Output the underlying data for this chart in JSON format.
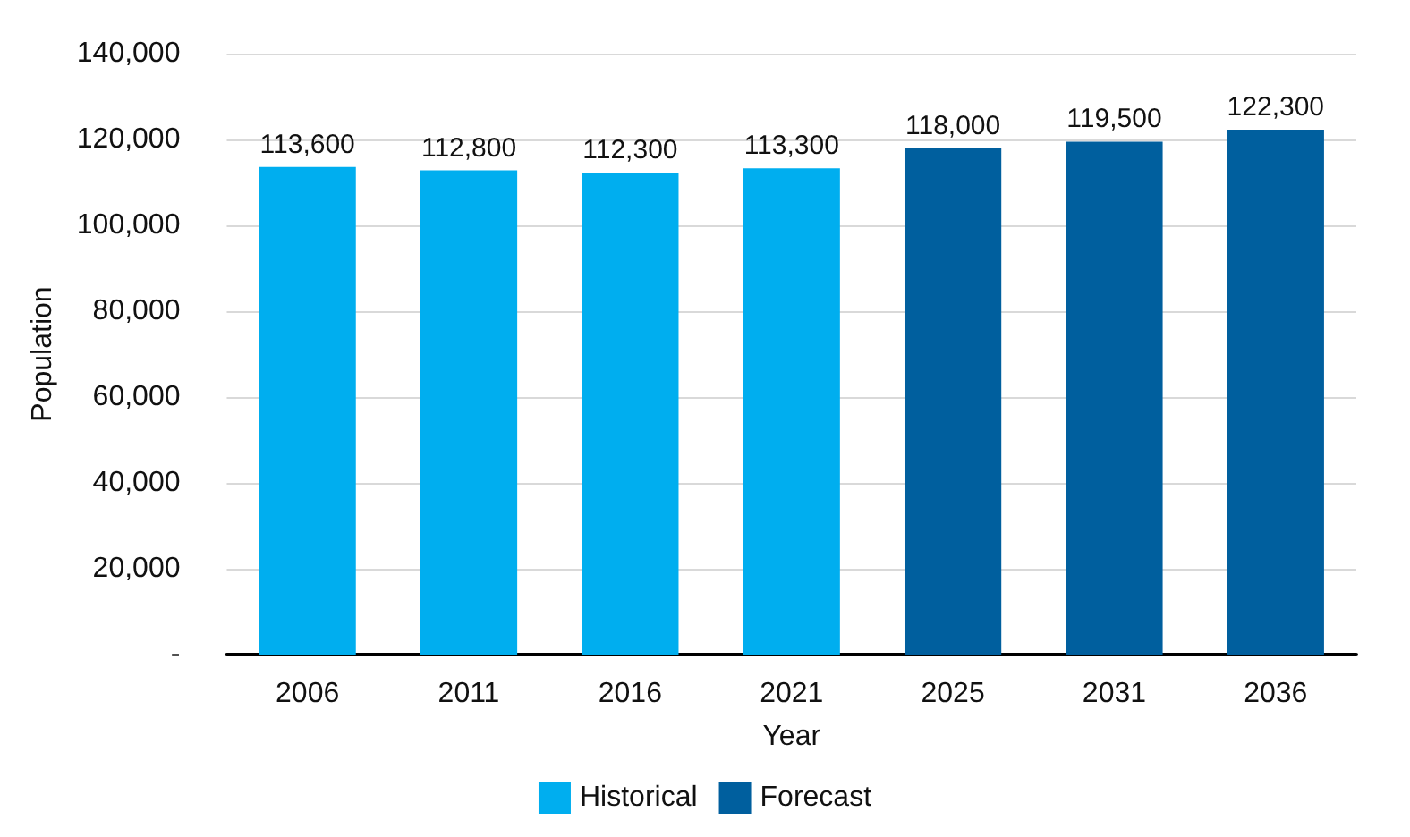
{
  "chart_data": {
    "type": "bar",
    "xlabel": "Year",
    "ylabel": "Population",
    "categories": [
      "2006",
      "2011",
      "2016",
      "2021",
      "2025",
      "2031",
      "2036"
    ],
    "series": [
      {
        "name": "Historical",
        "color": "#00aeef",
        "values": [
          113600,
          112800,
          112300,
          113300,
          null,
          null,
          null
        ],
        "value_labels": [
          "113,600",
          "112,800",
          "112,300",
          "113,300",
          null,
          null,
          null
        ]
      },
      {
        "name": "Forecast",
        "color": "#005f9e",
        "values": [
          null,
          null,
          null,
          null,
          118000,
          119500,
          122300
        ],
        "value_labels": [
          null,
          null,
          null,
          null,
          "118,000",
          "119,500",
          "122,300"
        ]
      }
    ],
    "ylim": [
      0,
      140000
    ],
    "yticks": [
      {
        "value": 0,
        "label": "-"
      },
      {
        "value": 20000,
        "label": "20,000"
      },
      {
        "value": 40000,
        "label": "40,000"
      },
      {
        "value": 60000,
        "label": "60,000"
      },
      {
        "value": 80000,
        "label": "80,000"
      },
      {
        "value": 100000,
        "label": "100,000"
      },
      {
        "value": 120000,
        "label": "120,000"
      },
      {
        "value": 140000,
        "label": "140,000"
      }
    ],
    "grid": "y",
    "legend": "bottom"
  }
}
